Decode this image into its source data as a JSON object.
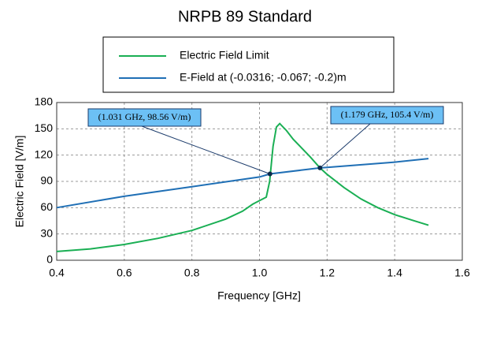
{
  "chart_data": {
    "type": "line",
    "title": "NRPB 89 Standard",
    "x_label": "Frequency [GHz]",
    "y_label": "Electric Field [V/m]",
    "xlim": [
      0.4,
      1.6
    ],
    "ylim": [
      0,
      180
    ],
    "xticks": [
      0.4,
      0.6,
      0.8,
      {
        "value": 1,
        "label": "1.0"
      },
      1.2,
      1.4,
      1.6
    ],
    "yticks": [
      0,
      30,
      60,
      90,
      120,
      150,
      180
    ],
    "grid": true,
    "series": [
      {
        "name": "Electric Field Limit",
        "color": "#1aaf54",
        "x": [
          0.4,
          0.5,
          0.6,
          0.7,
          0.8,
          0.9,
          0.95,
          0.98,
          1.0,
          1.02,
          1.03,
          1.04,
          1.05,
          1.06,
          1.08,
          1.1,
          1.15,
          1.179,
          1.2,
          1.25,
          1.3,
          1.35,
          1.4,
          1.45,
          1.5
        ],
        "values": [
          10,
          13,
          18,
          25,
          34,
          47,
          56,
          64,
          68,
          72,
          90,
          130,
          152,
          156,
          148,
          138,
          118,
          105.4,
          98,
          83,
          70,
          60,
          52,
          46,
          40
        ]
      },
      {
        "name": "E-Field at (-0.0316; -0.067; -0.2)m",
        "color": "#1f6fb5",
        "x": [
          0.4,
          0.6,
          0.8,
          1.0,
          1.031,
          1.179,
          1.2,
          1.4,
          1.5
        ],
        "values": [
          60,
          73,
          84,
          95,
          98.56,
          105.4,
          106,
          112,
          116
        ]
      }
    ],
    "annotations": [
      {
        "text": "(1.031 GHz, 98.56 V/m)",
        "x": 1.031,
        "y": 98.56
      },
      {
        "text": "(1.179 GHz, 105.4 V/m)",
        "x": 1.179,
        "y": 105.4
      }
    ]
  }
}
